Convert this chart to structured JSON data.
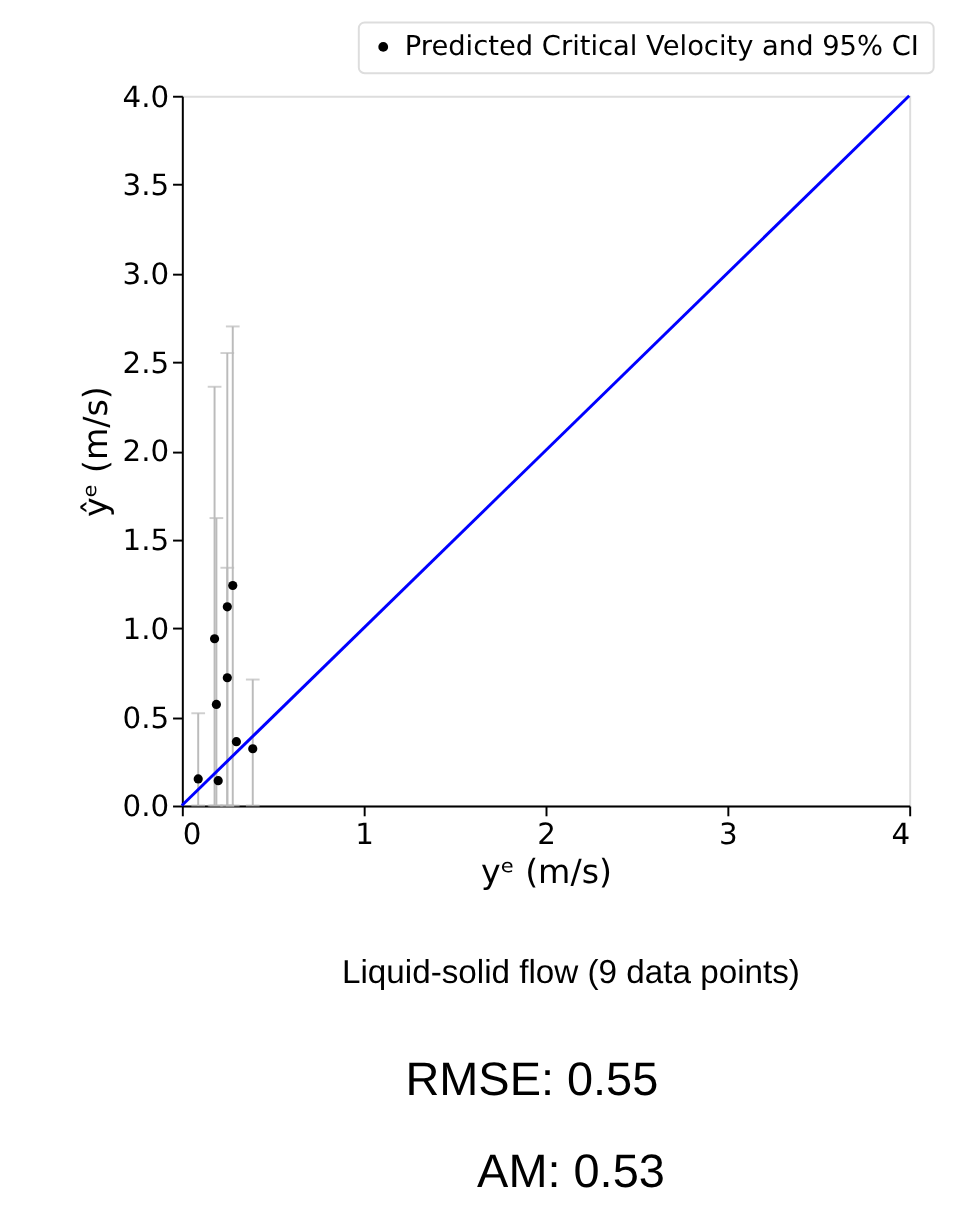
{
  "chart_data": {
    "type": "scatter",
    "xlabel": "yᵉ (m/s)",
    "ylabel": "ŷᵉ (m/s)",
    "xlim": [
      0,
      4
    ],
    "ylim": [
      0,
      4
    ],
    "xticks": [
      0,
      1,
      2,
      3,
      4
    ],
    "yticks": [
      {
        "value": 0,
        "label": "0.0"
      },
      0.5,
      {
        "value": 1,
        "label": "1.0"
      },
      1.5,
      {
        "value": 2,
        "label": "2.0"
      },
      2.5,
      {
        "value": 3,
        "label": "3.0"
      },
      3.5,
      {
        "value": 4,
        "label": "4.0"
      }
    ],
    "grid": false,
    "legend": "top right",
    "series": [
      {
        "name": "Predicted Critical Velocity and 95% CI",
        "marker": "circle",
        "color": "#000000",
        "x": [
          0.09,
          0.2,
          0.19,
          0.18,
          0.25,
          0.25,
          0.28,
          0.3,
          0.39
        ],
        "values": [
          0.15,
          0.14,
          0.57,
          0.94,
          1.12,
          0.72,
          1.24,
          0.36,
          0.32
        ],
        "errors": [
          [
            0,
            0.52
          ],
          null,
          [
            0,
            1.62
          ],
          [
            0,
            2.36
          ],
          [
            0,
            2.55
          ],
          [
            0,
            1.34
          ],
          [
            0,
            2.7
          ],
          null,
          [
            0,
            0.71
          ]
        ]
      },
      {
        "type": "line",
        "line_style": "solid",
        "color": "#0000ff",
        "x": [
          0,
          4
        ],
        "values": [
          0,
          4
        ]
      }
    ],
    "annotations": [
      "Liquid-solid flow (9 data points)",
      "RMSE: 0.55",
      "AM: 0.53"
    ]
  }
}
